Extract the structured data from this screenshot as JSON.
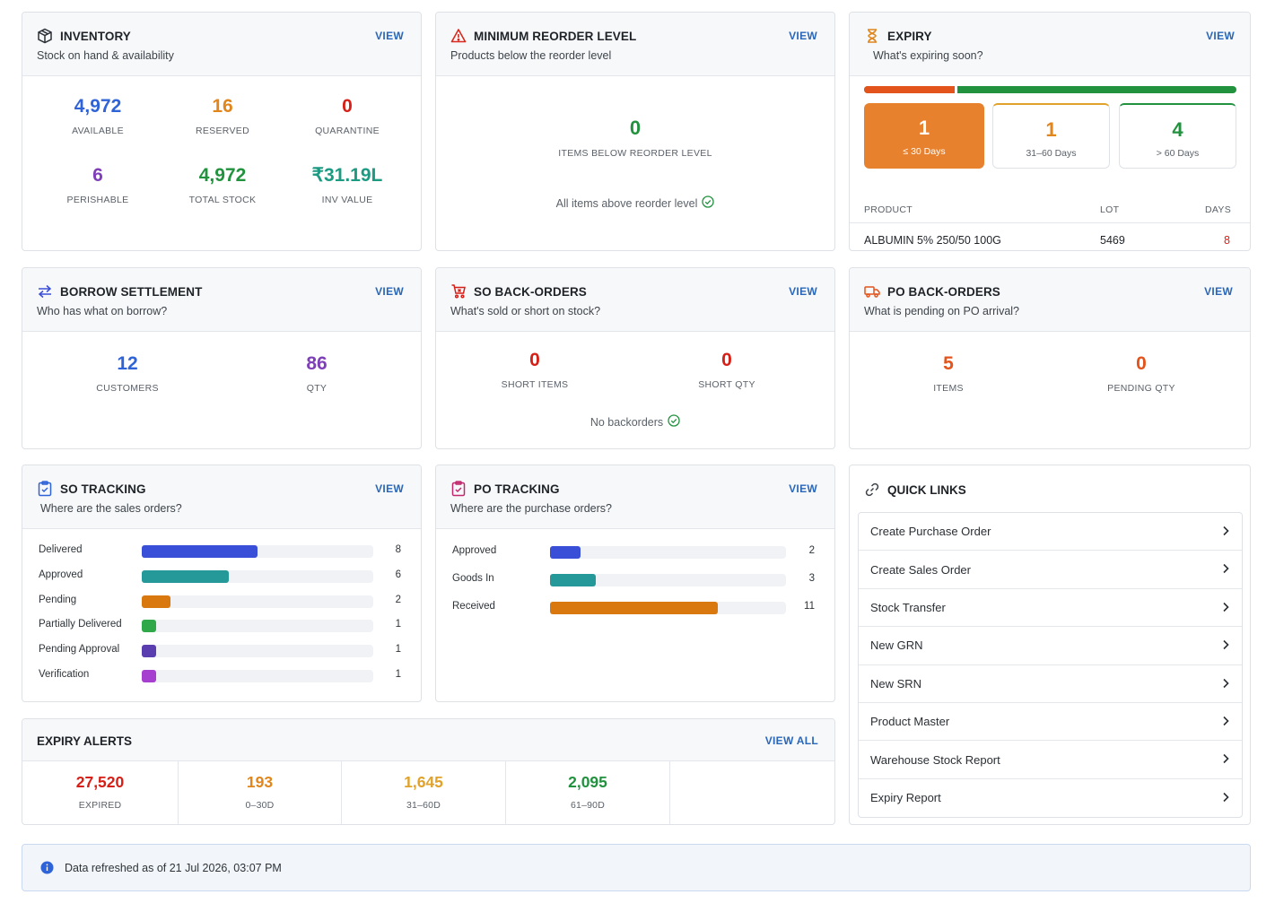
{
  "colors": {
    "blue": "#2f63d8",
    "orange": "#e0861c",
    "red": "#d61f16",
    "purple": "#7e3fb8",
    "green": "#22923f",
    "link": "#2a67b8"
  },
  "inventory": {
    "title": "INVENTORY",
    "subtitle": "Stock on hand & availability",
    "view": "VIEW",
    "stats": [
      {
        "value": "4,972",
        "label": "AVAILABLE"
      },
      {
        "value": "16",
        "label": "RESERVED"
      },
      {
        "value": "0",
        "label": "QUARANTINE"
      },
      {
        "value": "6",
        "label": "PERISHABLE"
      },
      {
        "value": "4,972",
        "label": "TOTAL STOCK"
      },
      {
        "value": "₹31.19L",
        "label": "INV VALUE"
      }
    ]
  },
  "reorder": {
    "title": "MINIMUM REORDER LEVEL",
    "subtitle": "Products below the reorder level",
    "view": "VIEW",
    "value": "0",
    "label": "ITEMS BELOW REORDER LEVEL",
    "note": "All items above reorder level"
  },
  "expiry": {
    "title": "EXPIRY",
    "subtitle": "What's expiring soon?",
    "view": "VIEW",
    "progress_share_le30": 0.25,
    "boxes": [
      {
        "value": "1",
        "label": "≤ 30 Days"
      },
      {
        "value": "1",
        "label": "31–60 Days"
      },
      {
        "value": "4",
        "label": "> 60 Days"
      }
    ],
    "table": {
      "headers": [
        "PRODUCT",
        "LOT",
        "DAYS"
      ],
      "rows": [
        [
          "ALBUMIN 5% 250/50 100G",
          "5469",
          "8"
        ]
      ]
    }
  },
  "borrow": {
    "title": "BORROW SETTLEMENT",
    "subtitle": "Who has what on borrow?",
    "view": "VIEW",
    "stats": [
      {
        "value": "12",
        "label": "CUSTOMERS"
      },
      {
        "value": "86",
        "label": "QTY"
      }
    ]
  },
  "so_backorders": {
    "title": "SO BACK-ORDERS",
    "subtitle": "What's sold or short on stock?",
    "view": "VIEW",
    "stats": [
      {
        "value": "0",
        "label": "SHORT ITEMS"
      },
      {
        "value": "0",
        "label": "SHORT QTY"
      }
    ],
    "note": "No backorders"
  },
  "po_backorders": {
    "title": "PO BACK-ORDERS",
    "subtitle": "What is pending on PO arrival?",
    "view": "VIEW",
    "stats": [
      {
        "value": "5",
        "label": "ITEMS"
      },
      {
        "value": "0",
        "label": "PENDING QTY"
      }
    ]
  },
  "so_tracking": {
    "title": "SO TRACKING",
    "subtitle": "Where are the sales orders?",
    "view": "VIEW",
    "max": 16,
    "rows": [
      {
        "label": "Delivered",
        "value": "8",
        "n": 8,
        "color": "#3a4fd8"
      },
      {
        "label": "Approved",
        "value": "6",
        "n": 6,
        "color": "#25999a"
      },
      {
        "label": "Pending",
        "value": "2",
        "n": 2,
        "color": "#d9780e"
      },
      {
        "label": "Partially Delivered",
        "value": "1",
        "n": 1,
        "color": "#2fa84a"
      },
      {
        "label": "Pending Approval",
        "value": "1",
        "n": 1,
        "color": "#5a3eb0"
      },
      {
        "label": "Verification",
        "value": "1",
        "n": 1,
        "color": "#a63fd0"
      }
    ]
  },
  "po_tracking": {
    "title": "PO TRACKING",
    "subtitle": "Where are the purchase orders?",
    "view": "VIEW",
    "max": 15.5,
    "rows": [
      {
        "label": "Approved",
        "value": "2",
        "n": 2,
        "color": "#3a4fd8"
      },
      {
        "label": "Goods In",
        "value": "3",
        "n": 3,
        "color": "#25999a"
      },
      {
        "label": "Received",
        "value": "11",
        "n": 11,
        "color": "#d9780e"
      }
    ]
  },
  "quick_links": {
    "title": "QUICK LINKS",
    "items": [
      "Create Purchase Order",
      "Create Sales Order",
      "Stock Transfer",
      "New GRN",
      "New SRN",
      "Product Master",
      "Warehouse Stock Report",
      "Expiry Report"
    ]
  },
  "expiry_alerts": {
    "title": "EXPIRY ALERTS",
    "view": "VIEW ALL",
    "cells": [
      {
        "value": "27,520",
        "label": "EXPIRED"
      },
      {
        "value": "193",
        "label": "0–30D"
      },
      {
        "value": "1,645",
        "label": "31–60D"
      },
      {
        "value": "2,095",
        "label": "61–90D"
      }
    ]
  },
  "footer": {
    "text": "Data refreshed as of 21 Jul 2026, 03:07 PM"
  }
}
